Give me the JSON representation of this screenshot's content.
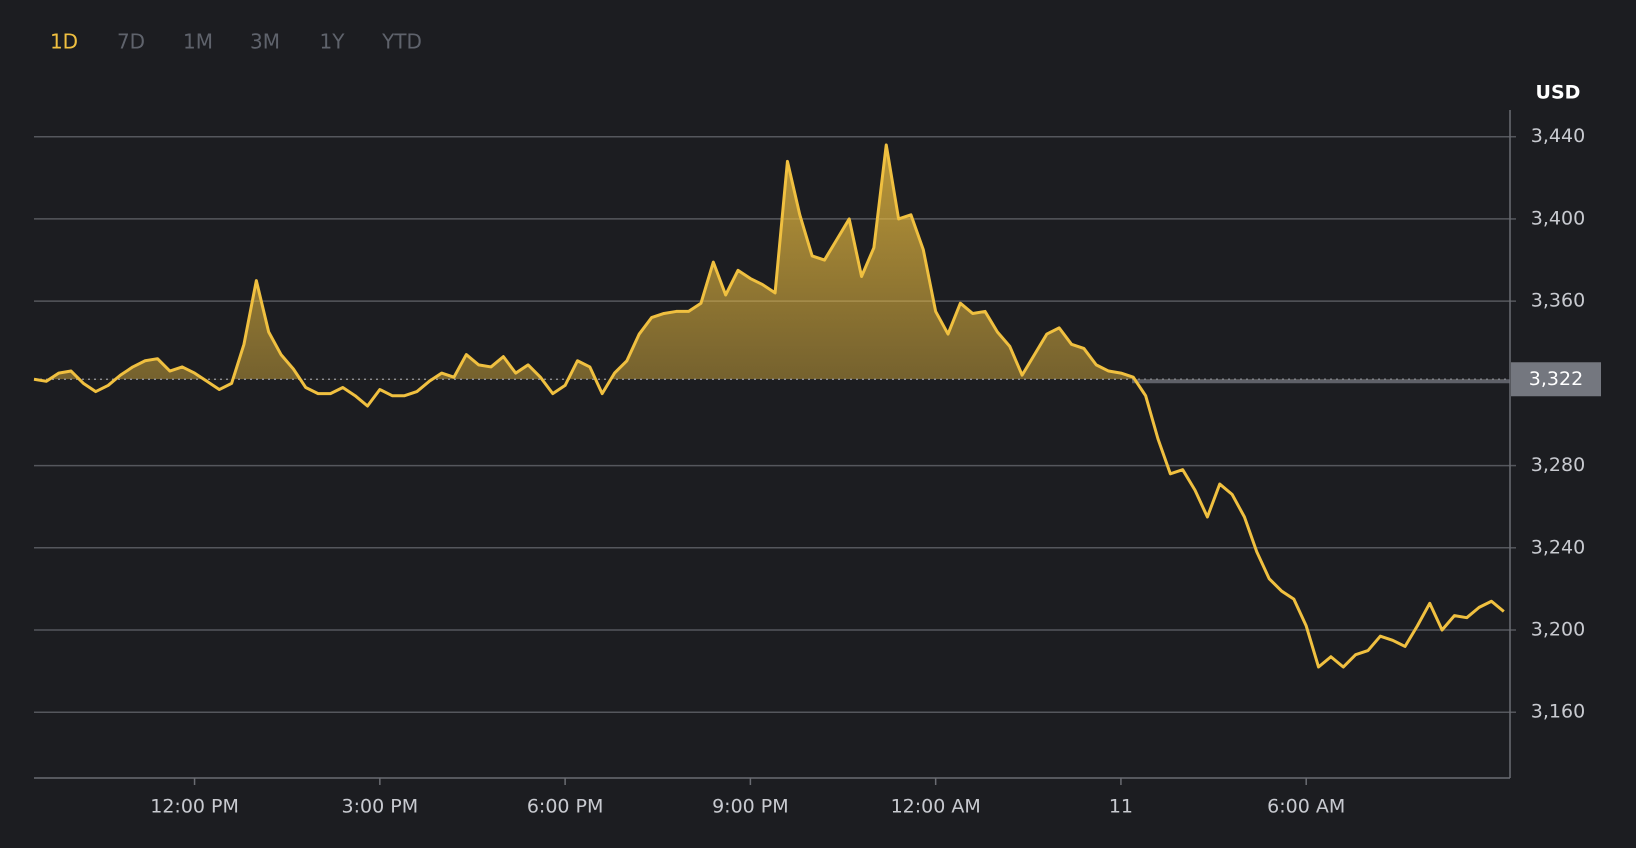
{
  "chart_data": {
    "type": "line",
    "range_tabs": [
      "1D",
      "7D",
      "1M",
      "3M",
      "1Y",
      "YTD"
    ],
    "active_range": "1D",
    "y_axis_label": "USD",
    "color": "#f0c040",
    "grid": true,
    "area_fill": true,
    "reference_line": {
      "value": 3322,
      "label": "3,322"
    },
    "x": [
      9.4,
      9.6,
      9.8,
      10,
      10.2,
      10.4,
      10.6,
      10.8,
      11,
      11.2,
      11.4,
      11.6,
      11.8,
      12,
      12.2,
      12.4,
      12.6,
      12.8,
      13,
      13.2,
      13.4,
      13.6,
      13.8,
      14,
      14.2,
      14.4,
      14.6,
      14.8,
      15,
      15.2,
      15.4,
      15.6,
      15.8,
      16,
      16.2,
      16.4,
      16.6,
      16.8,
      17,
      17.2,
      17.4,
      17.6,
      17.8,
      18,
      18.2,
      18.4,
      18.6,
      18.8,
      19,
      19.2,
      19.4,
      19.6,
      19.8,
      20,
      20.2,
      20.4,
      20.6,
      20.8,
      21,
      21.2,
      21.4,
      21.6,
      21.8,
      22,
      22.2,
      22.4,
      22.6,
      22.8,
      23,
      23.2,
      23.4,
      23.6,
      23.8,
      24,
      24.2,
      24.4,
      24.6,
      24.8,
      25,
      25.2,
      25.4,
      25.6,
      25.8,
      26,
      26.2,
      26.4,
      26.6,
      26.8,
      27,
      27.2,
      27.4,
      27.6,
      27.8,
      28,
      28.2,
      28.4,
      28.6,
      28.8,
      29,
      29.2,
      29.4,
      29.6,
      29.8,
      30,
      30.2,
      30.4,
      30.6,
      30.8,
      31,
      31.2,
      31.4,
      31.6,
      31.8,
      32,
      32.2,
      32.4,
      32.6,
      32.8,
      33,
      33.2
    ],
    "values": [
      3322,
      3321,
      3325,
      3326,
      3320,
      3316,
      3319,
      3324,
      3328,
      3331,
      3332,
      3326,
      3328,
      3325,
      3321,
      3317,
      3320,
      3339,
      3370,
      3345,
      3334,
      3327,
      3318,
      3315,
      3315,
      3318,
      3314,
      3309,
      3317,
      3314,
      3314,
      3316,
      3321,
      3325,
      3323,
      3334,
      3329,
      3328,
      3333,
      3325,
      3329,
      3323,
      3315,
      3319,
      3331,
      3328,
      3315,
      3325,
      3331,
      3344,
      3352,
      3354,
      3355,
      3355,
      3359,
      3379,
      3363,
      3375,
      3371,
      3368,
      3364,
      3428,
      3402,
      3382,
      3380,
      3390,
      3400,
      3372,
      3386,
      3436,
      3400,
      3402,
      3385,
      3355,
      3344,
      3359,
      3354,
      3355,
      3345,
      3338,
      3324,
      3334,
      3344,
      3347,
      3339,
      3337,
      3329,
      3326,
      3325,
      3323,
      3314,
      3293,
      3276,
      3278,
      3268,
      3255,
      3271,
      3266,
      3255,
      3238,
      3225,
      3219,
      3215,
      3202,
      3182,
      3187,
      3182,
      3188,
      3190,
      3197,
      3195,
      3192,
      3202,
      3213,
      3200,
      3207,
      3206,
      3211,
      3214,
      3209
    ],
    "xlim": [
      9.4,
      33.3
    ],
    "xticks": [
      {
        "value": 12,
        "label": "12:00 PM"
      },
      {
        "value": 15,
        "label": "3:00 PM"
      },
      {
        "value": 18,
        "label": "6:00 PM"
      },
      {
        "value": 21,
        "label": "9:00 PM"
      },
      {
        "value": 24,
        "label": "12:00 AM"
      },
      {
        "value": 27,
        "label": "11"
      },
      {
        "value": 30,
        "label": "6:00 AM"
      }
    ],
    "ylim": [
      3128,
      3453
    ],
    "yticks": [
      {
        "value": 3160,
        "label": "3,160"
      },
      {
        "value": 3200,
        "label": "3,200"
      },
      {
        "value": 3240,
        "label": "3,240"
      },
      {
        "value": 3280,
        "label": "3,280"
      },
      {
        "value": 3360,
        "label": "3,360"
      },
      {
        "value": 3400,
        "label": "3,400"
      },
      {
        "value": 3440,
        "label": "3,440"
      }
    ]
  }
}
